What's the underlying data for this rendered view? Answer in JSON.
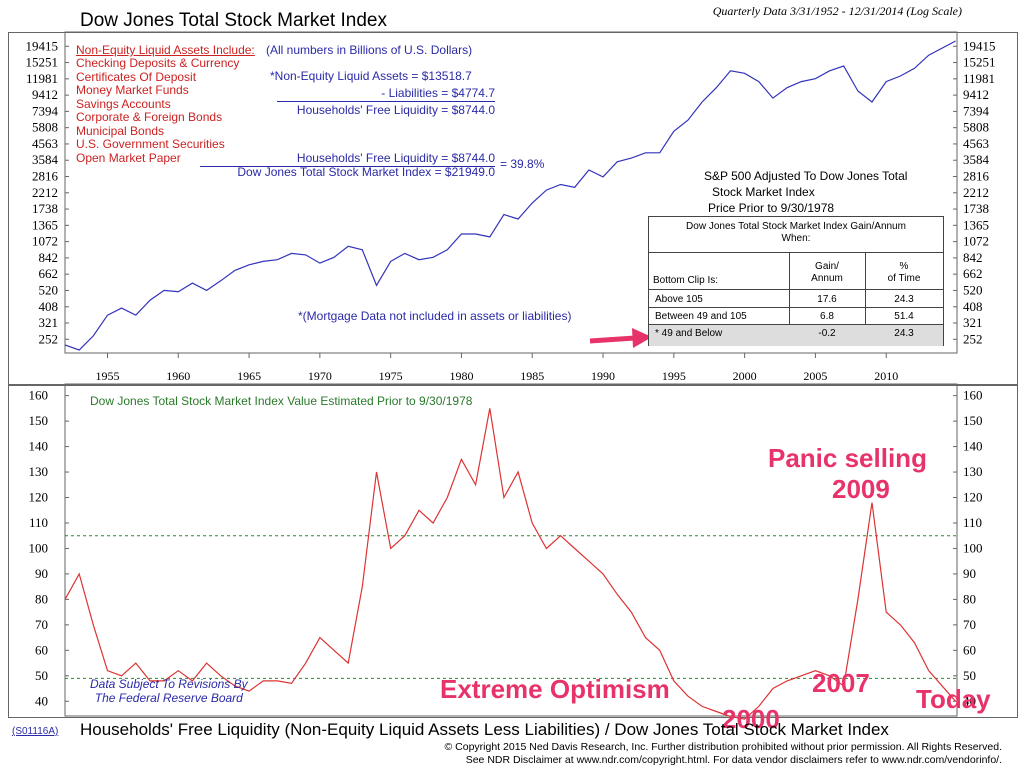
{
  "header": {
    "title": "Dow Jones Total Stock Market Index",
    "subtitle": "Quarterly Data 3/31/1952 - 12/31/2014 (Log Scale)"
  },
  "top_panel": {
    "non_equity_heading": "Non-Equity Liquid Assets Include:",
    "non_equity_items": [
      "Checking Deposits & Currency",
      "Certificates Of Deposit",
      "Money Market Funds",
      "Savings Accounts",
      "Corporate & Foreign Bonds",
      "Municipal Bonds",
      "U.S. Government Securities",
      "Open Market Paper"
    ],
    "units_note": "(All numbers in Billions of U.S. Dollars)",
    "assets_line": "*Non-Equity Liquid Assets = $13518.7",
    "liabilities_line": "- Liabilities = $4774.7",
    "free_liquidity_line": "Households' Free Liquidity = $8744.0",
    "ratio_numerator": "Households' Free Liquidity = $8744.0",
    "ratio_denominator": "Dow Jones Total Stock Market Index = $21949.0",
    "ratio_result": "= 39.8%",
    "mortgage_note": "*(Mortgage Data not included in assets or liabilities)",
    "sp500_note_1": "S&P 500 Adjusted To Dow Jones Total",
    "sp500_note_2": "Stock Market Index",
    "sp500_note_3": "Price Prior to 9/30/1978",
    "y_ticks": [
      "19415",
      "15251",
      "11981",
      "9412",
      "7394",
      "5808",
      "4563",
      "3584",
      "2816",
      "2212",
      "1738",
      "1365",
      "1072",
      "842",
      "662",
      "520",
      "408",
      "321",
      "252"
    ],
    "x_ticks": [
      "1955",
      "1960",
      "1965",
      "1970",
      "1975",
      "1980",
      "1985",
      "1990",
      "1995",
      "2000",
      "2005",
      "2010"
    ]
  },
  "table": {
    "title_1": "Dow Jones Total Stock Market Index Gain/Annum",
    "title_2": "When:",
    "col1_header": "Bottom Clip Is:",
    "col2_header_1": "Gain/",
    "col2_header_2": "Annum",
    "col3_header_1": "%",
    "col3_header_2": "of Time",
    "rows": [
      {
        "label": "Above 105",
        "gain": "17.6",
        "time": "24.3"
      },
      {
        "label": "Between 49 and 105",
        "gain": "6.8",
        "time": "51.4"
      },
      {
        "label": "* 49 and Below",
        "gain": "-0.2",
        "time": "24.3"
      }
    ]
  },
  "bottom_panel": {
    "subtitle": "Dow Jones Total Stock Market Index Value Estimated Prior to 9/30/1978",
    "revision_note_1": "Data Subject To Revisions By",
    "revision_note_2": "The Federal Reserve Board",
    "y_ticks": [
      "160",
      "150",
      "140",
      "130",
      "120",
      "110",
      "100",
      "90",
      "80",
      "70",
      "60",
      "50",
      "40"
    ],
    "panic_label_1": "Panic selling",
    "panic_label_2": "2009",
    "extreme_label": "Extreme Optimism",
    "label_2007": "2007",
    "label_today": "Today",
    "label_2000": "2000"
  },
  "footer": {
    "code": "(S01116A)",
    "bottom_title": "Households' Free Liquidity (Non-Equity Liquid Assets Less Liabilities) / Dow Jones Total Stock Market Index",
    "copyright_1": "© Copyright 2015 Ned Davis Research, Inc.  Further distribution prohibited without prior permission.  All Rights Reserved.",
    "copyright_2": "See NDR Disclaimer at www.ndr.com/copyright.html. For data vendor disclaimers refer to www.ndr.com/vendorinfo/."
  },
  "colors": {
    "top_line": "#3333bb",
    "bottom_line": "#dd3333",
    "threshold": "#2a8a2a",
    "pink": "#e8336a"
  },
  "chart_data": [
    {
      "type": "line",
      "title": "Dow Jones Total Stock Market Index",
      "yscale": "log",
      "ylim": [
        215,
        21949
      ],
      "xlim": [
        1952,
        2015
      ],
      "x": [
        1952,
        1953,
        1954,
        1955,
        1956,
        1957,
        1958,
        1959,
        1960,
        1961,
        1962,
        1963,
        1964,
        1965,
        1966,
        1967,
        1968,
        1969,
        1970,
        1971,
        1972,
        1973,
        1974,
        1975,
        1976,
        1977,
        1978,
        1979,
        1980,
        1981,
        1982,
        1983,
        1984,
        1985,
        1986,
        1987,
        1988,
        1989,
        1990,
        1991,
        1992,
        1993,
        1994,
        1995,
        1996,
        1997,
        1998,
        1999,
        2000,
        2001,
        2002,
        2003,
        2004,
        2005,
        2006,
        2007,
        2008,
        2009,
        2010,
        2011,
        2012,
        2013,
        2014.9
      ],
      "values": [
        232,
        215,
        265,
        360,
        400,
        360,
        450,
        520,
        510,
        580,
        520,
        600,
        700,
        760,
        800,
        820,
        900,
        880,
        780,
        850,
        1000,
        950,
        560,
        800,
        900,
        820,
        850,
        950,
        1200,
        1200,
        1150,
        1600,
        1500,
        1900,
        2300,
        2500,
        2400,
        3100,
        2800,
        3500,
        3700,
        4000,
        4000,
        5500,
        6500,
        8500,
        10500,
        13500,
        13000,
        11500,
        9000,
        10500,
        11500,
        12000,
        13500,
        14500,
        10000,
        8500,
        11500,
        12500,
        14000,
        17000,
        21000
      ]
    },
    {
      "type": "line",
      "title": "Households' Free Liquidity / Dow Jones Total Stock Market Index",
      "ylim": [
        35,
        163
      ],
      "xlim": [
        1952,
        2015
      ],
      "thresholds": [
        105,
        49
      ],
      "x": [
        1952,
        1953,
        1954,
        1955,
        1956,
        1957,
        1958,
        1959,
        1960,
        1961,
        1962,
        1963,
        1964,
        1965,
        1966,
        1967,
        1968,
        1969,
        1970,
        1971,
        1972,
        1973,
        1974,
        1975,
        1976,
        1977,
        1978,
        1979,
        1980,
        1981,
        1982,
        1983,
        1984,
        1985,
        1986,
        1987,
        1988,
        1989,
        1990,
        1991,
        1992,
        1993,
        1994,
        1995,
        1996,
        1997,
        1998,
        1999,
        2000,
        2001,
        2002,
        2003,
        2004,
        2005,
        2006,
        2007,
        2008,
        2009,
        2010,
        2011,
        2012,
        2013,
        2014.9
      ],
      "values": [
        80,
        90,
        70,
        52,
        50,
        55,
        48,
        48,
        52,
        48,
        55,
        50,
        46,
        44,
        48,
        48,
        47,
        55,
        65,
        60,
        55,
        85,
        130,
        100,
        105,
        115,
        110,
        120,
        135,
        125,
        155,
        120,
        130,
        110,
        100,
        105,
        100,
        95,
        90,
        82,
        75,
        65,
        60,
        48,
        42,
        38,
        36,
        34,
        33,
        38,
        45,
        48,
        50,
        52,
        50,
        46,
        80,
        118,
        75,
        70,
        63,
        52,
        40
      ]
    }
  ]
}
